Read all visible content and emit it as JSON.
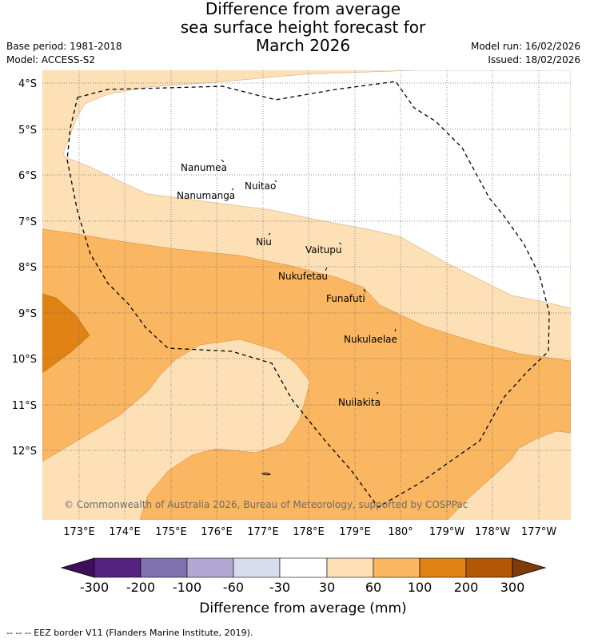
{
  "title": {
    "line1": "Difference from average",
    "line2": "sea surface height forecast for",
    "line3": "March 2026"
  },
  "meta": {
    "base_period": "Base period: 1981-2018",
    "model": "Model: ACCESS-S2",
    "model_run": "Model run: 16/02/2026",
    "issued": "Issued: 18/02/2026"
  },
  "map": {
    "lat_labels": [
      "4°S",
      "5°S",
      "6°S",
      "7°S",
      "8°S",
      "9°S",
      "10°S",
      "11°S",
      "12°S"
    ],
    "lon_labels": [
      "173°E",
      "174°E",
      "175°E",
      "176°E",
      "177°E",
      "178°E",
      "179°E",
      "180°",
      "179°W",
      "178°W",
      "177°W"
    ],
    "places": [
      {
        "name": "Nanumea"
      },
      {
        "name": "Nuitao"
      },
      {
        "name": "Nanumanga"
      },
      {
        "name": "Niu"
      },
      {
        "name": "Vaitupu"
      },
      {
        "name": "Nukufetau"
      },
      {
        "name": "Funafuti"
      },
      {
        "name": "Nukulaelae"
      },
      {
        "name": "Nuilakita"
      }
    ],
    "copyright": "© Commonwealth of Australia 2026, Bureau of Meteorology, supported by COSPPac"
  },
  "colorbar": {
    "ticks": [
      "-300",
      "-200",
      "-100",
      "-60",
      "-30",
      "30",
      "60",
      "100",
      "200",
      "300"
    ],
    "colors": [
      "#3d0f5a",
      "#54237f",
      "#7f72ae",
      "#b1a9d3",
      "#d9dbee",
      "#ffffff",
      "#fde0b6",
      "#fab661",
      "#e08214",
      "#b35806",
      "#7f3b08"
    ],
    "label": "Difference from average (mm)"
  },
  "footnote": "--  --  -- EEZ border V11 (Flanders Marine Institute, 2019)."
}
